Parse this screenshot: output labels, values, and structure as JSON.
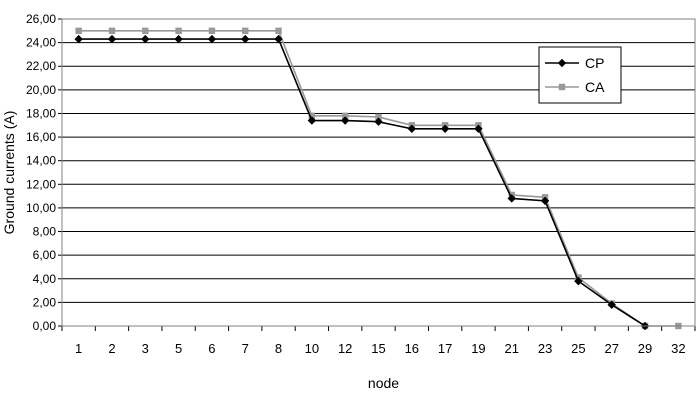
{
  "chart_data": {
    "type": "line",
    "xlabel": "node",
    "ylabel": "Ground currents (A)",
    "categories": [
      "1",
      "2",
      "3",
      "5",
      "6",
      "7",
      "8",
      "10",
      "12",
      "15",
      "16",
      "17",
      "19",
      "21",
      "23",
      "25",
      "27",
      "29",
      "32"
    ],
    "ylim": [
      0,
      26
    ],
    "ytick_step": 2,
    "ytick_labels": [
      "0,00",
      "2,00",
      "4,00",
      "6,00",
      "8,00",
      "10,00",
      "12,00",
      "14,00",
      "16,00",
      "18,00",
      "20,00",
      "22,00",
      "24,00",
      "26,00"
    ],
    "grid": true,
    "legend_position": "right",
    "series": [
      {
        "name": "CP",
        "color": "#000000",
        "marker": "diamond",
        "values": [
          24.3,
          24.3,
          24.3,
          24.3,
          24.3,
          24.3,
          24.3,
          17.4,
          17.4,
          17.3,
          16.7,
          16.7,
          16.7,
          10.8,
          10.6,
          3.8,
          1.8,
          0.0,
          null
        ]
      },
      {
        "name": "CA",
        "color": "#999999",
        "marker": "square",
        "values": [
          25.0,
          25.0,
          25.0,
          25.0,
          25.0,
          25.0,
          25.0,
          17.8,
          17.8,
          17.7,
          17.0,
          17.0,
          17.0,
          11.1,
          10.9,
          4.1,
          1.9,
          0.0,
          0.0
        ]
      }
    ]
  }
}
